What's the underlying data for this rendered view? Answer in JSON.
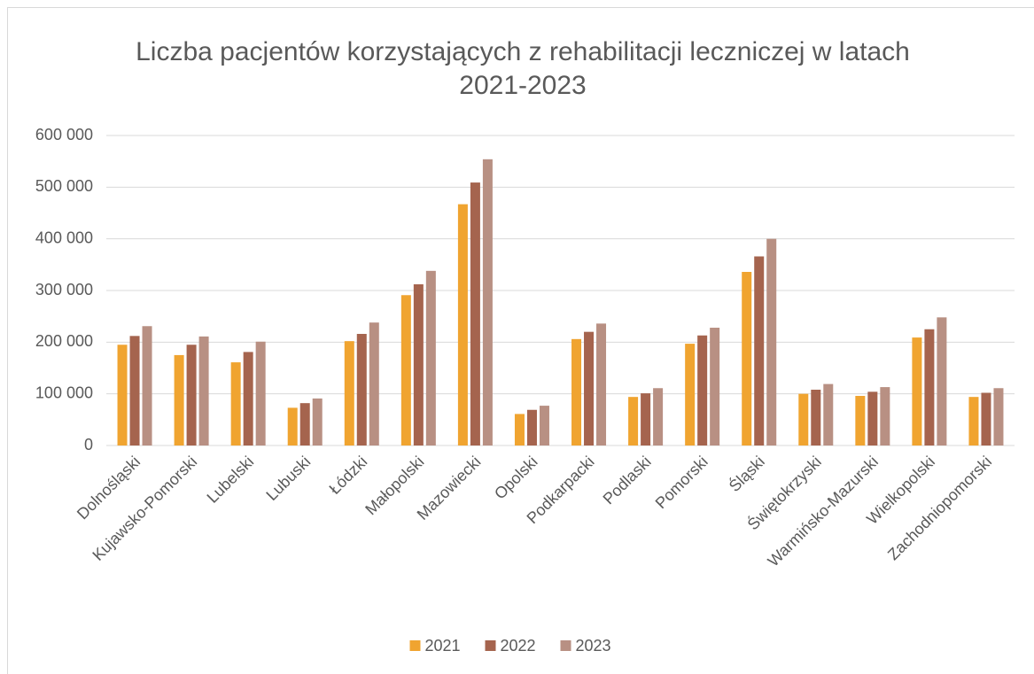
{
  "chart_data": {
    "type": "bar",
    "title": "Liczba pacjentów korzystających z rehabilitacji leczniczej w latach 2021-2023",
    "categories": [
      "Dolnośląski",
      "Kujawsko-Pomorski",
      "Lubelski",
      "Lubuski",
      "Łódzki",
      "Małopolski",
      "Mazowiecki",
      "Opolski",
      "Podkarpacki",
      "Podlaski",
      "Pomorski",
      "Śląski",
      "Świętokrzyski",
      "Warmińsko-Mazurski",
      "Wielkopolski",
      "Zachodniopomorski"
    ],
    "series": [
      {
        "name": "2021",
        "color": "#f0a430",
        "values": [
          195000,
          175000,
          161000,
          73000,
          202000,
          291000,
          467000,
          61000,
          206000,
          94000,
          197000,
          336000,
          100000,
          96000,
          209000,
          94000
        ]
      },
      {
        "name": "2022",
        "color": "#a5644e",
        "values": [
          212000,
          195000,
          181000,
          82000,
          216000,
          312000,
          509000,
          69000,
          220000,
          101000,
          213000,
          366000,
          108000,
          104000,
          225000,
          102000
        ]
      },
      {
        "name": "2023",
        "color": "#b89083",
        "values": [
          231000,
          211000,
          201000,
          91000,
          238000,
          338000,
          554000,
          77000,
          236000,
          111000,
          228000,
          400000,
          119000,
          113000,
          248000,
          111000
        ]
      }
    ],
    "ylim": [
      0,
      600000
    ],
    "yticks": [
      {
        "value": 0,
        "label": "0"
      },
      {
        "value": 100000,
        "label": "100 000"
      },
      {
        "value": 200000,
        "label": "200 000"
      },
      {
        "value": 300000,
        "label": "300 000"
      },
      {
        "value": 400000,
        "label": "400 000"
      },
      {
        "value": 500000,
        "label": "500 000"
      },
      {
        "value": 600000,
        "label": "600 000"
      }
    ],
    "grid": true,
    "legend": "bottom"
  }
}
